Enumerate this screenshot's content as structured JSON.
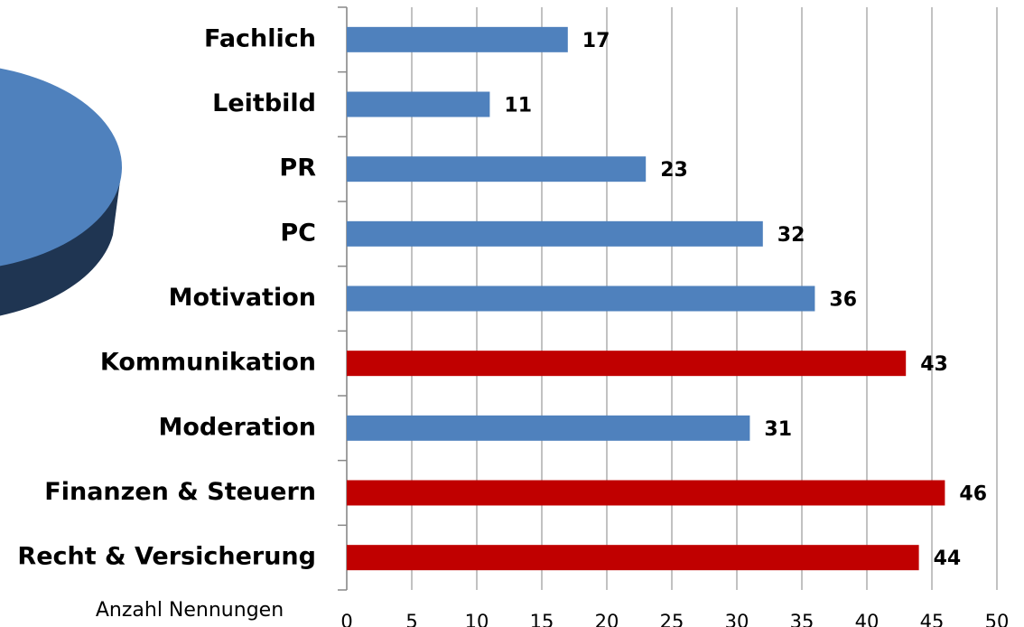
{
  "chart_data": {
    "type": "bar",
    "orientation": "horizontal",
    "categories": [
      "Fachlich",
      "Leitbild",
      "PR",
      "PC",
      "Motivation",
      "Kommunikation",
      "Moderation",
      "Finanzen & Steuern",
      "Recht & Versicherung"
    ],
    "values": [
      17,
      11,
      23,
      32,
      36,
      43,
      31,
      46,
      44
    ],
    "colors": [
      "#4f81bd",
      "#4f81bd",
      "#4f81bd",
      "#4f81bd",
      "#4f81bd",
      "#c00000",
      "#4f81bd",
      "#c00000",
      "#c00000"
    ],
    "xlabel": "Anzahl Nennungen",
    "xlim": [
      0,
      50
    ],
    "xticks": [
      0,
      5,
      10,
      15,
      20,
      25,
      30,
      35,
      40,
      45,
      50
    ],
    "grid": true
  }
}
